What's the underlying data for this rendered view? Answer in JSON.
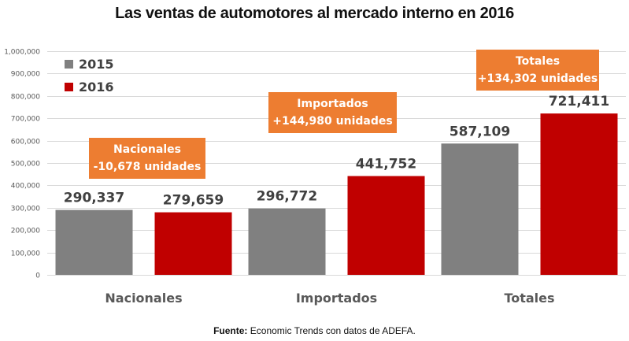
{
  "chart_data": {
    "type": "bar",
    "title": "Las ventas de automotores al mercado interno en 2016",
    "xlabel": "",
    "ylabel": "",
    "ylim": [
      0,
      1000000
    ],
    "yticks": [
      0,
      100000,
      200000,
      300000,
      400000,
      500000,
      600000,
      700000,
      800000,
      900000,
      1000000
    ],
    "ytick_labels": [
      "0",
      "100,000",
      "200,000",
      "300,000",
      "400,000",
      "500,000",
      "600,000",
      "700,000",
      "800,000",
      "900,000",
      "1,000,000"
    ],
    "grid": true,
    "legend_position": "top-left",
    "categories": [
      "Nacionales",
      "Importados",
      "Totales"
    ],
    "series": [
      {
        "name": "2015",
        "color": "#808080",
        "values": [
          290337,
          296772,
          587109
        ],
        "labels": [
          "290,337",
          "296,772",
          "587,109"
        ]
      },
      {
        "name": "2016",
        "color": "#c00000",
        "values": [
          279659,
          441752,
          721411
        ],
        "labels": [
          "279,659",
          "441,752",
          "721,411"
        ]
      }
    ],
    "annotations": [
      {
        "category": "Nacionales",
        "line1": "Nacionales",
        "line2": "-10,678 unidades",
        "color": "#ed7d31"
      },
      {
        "category": "Importados",
        "line1": "Importados",
        "line2": "+144,980 unidades",
        "color": "#ed7d31"
      },
      {
        "category": "Totales",
        "line1": "Totales",
        "line2": "+134,302 unidades",
        "color": "#ed7d31"
      }
    ]
  },
  "source": {
    "label": "Fuente:",
    "text": " Economic Trends con datos de ADEFA."
  }
}
